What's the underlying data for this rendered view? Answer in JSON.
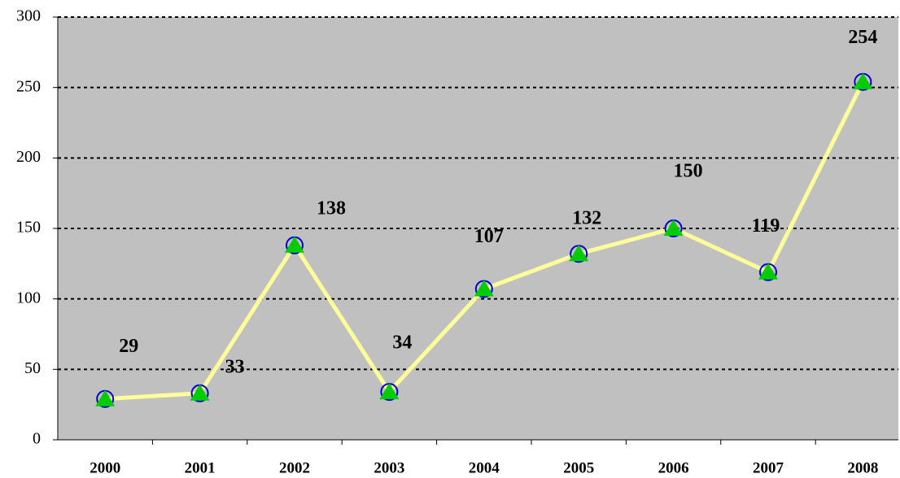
{
  "chart_data": {
    "type": "line",
    "categories": [
      "2000",
      "2001",
      "2002",
      "2003",
      "2004",
      "2005",
      "2006",
      "2007",
      "2008"
    ],
    "series": [
      {
        "color": "#ffff99",
        "values": [
          29,
          33,
          138,
          34,
          107,
          132,
          150,
          119,
          254
        ]
      }
    ],
    "ylim": [
      0,
      300
    ],
    "yticks": [
      0,
      50,
      100,
      150,
      200,
      250,
      300
    ],
    "grid": true
  }
}
